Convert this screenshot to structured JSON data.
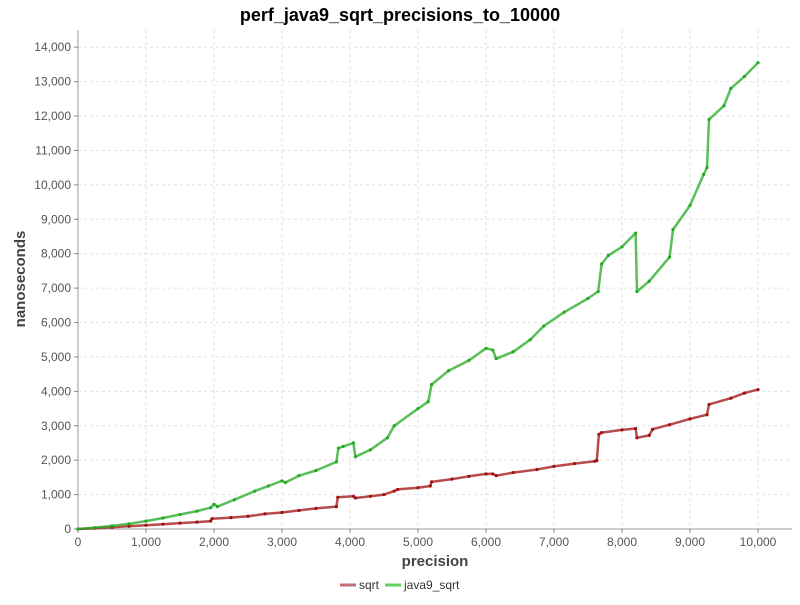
{
  "chart_data": {
    "type": "line",
    "title": "perf_java9_sqrt_precisions_to_10000",
    "xlabel": "precision",
    "ylabel": "nanoseconds",
    "xlim": [
      0,
      10500
    ],
    "ylim": [
      0,
      14500
    ],
    "x_ticks": [
      0,
      1000,
      2000,
      3000,
      4000,
      5000,
      6000,
      7000,
      8000,
      9000,
      10000
    ],
    "x_tick_labels": [
      "0",
      "1,000",
      "2,000",
      "3,000",
      "4,000",
      "5,000",
      "6,000",
      "7,000",
      "8,000",
      "9,000",
      "10,000"
    ],
    "y_ticks": [
      0,
      1000,
      2000,
      3000,
      4000,
      5000,
      6000,
      7000,
      8000,
      9000,
      10000,
      11000,
      12000,
      13000,
      14000
    ],
    "y_tick_labels": [
      "0",
      "1,000",
      "2,000",
      "3,000",
      "4,000",
      "5,000",
      "6,000",
      "7,000",
      "8,000",
      "9,000",
      "10,000",
      "11,000",
      "12,000",
      "13,000",
      "14,000"
    ],
    "grid": true,
    "legend_position": "bottom-center",
    "series": [
      {
        "name": "sqrt",
        "color": "#a01010",
        "legend_color": "#c07070",
        "points": [
          [
            0,
            0
          ],
          [
            250,
            20
          ],
          [
            500,
            50
          ],
          [
            750,
            80
          ],
          [
            1000,
            110
          ],
          [
            1250,
            140
          ],
          [
            1500,
            170
          ],
          [
            1750,
            200
          ],
          [
            1950,
            230
          ],
          [
            1970,
            300
          ],
          [
            2250,
            330
          ],
          [
            2500,
            370
          ],
          [
            2750,
            440
          ],
          [
            3000,
            480
          ],
          [
            3250,
            540
          ],
          [
            3500,
            600
          ],
          [
            3800,
            650
          ],
          [
            3820,
            920
          ],
          [
            4050,
            950
          ],
          [
            4080,
            900
          ],
          [
            4300,
            950
          ],
          [
            4500,
            1000
          ],
          [
            4650,
            1100
          ],
          [
            4700,
            1150
          ],
          [
            5000,
            1200
          ],
          [
            5180,
            1250
          ],
          [
            5200,
            1370
          ],
          [
            5500,
            1450
          ],
          [
            5750,
            1530
          ],
          [
            6000,
            1600
          ],
          [
            6100,
            1600
          ],
          [
            6150,
            1550
          ],
          [
            6400,
            1640
          ],
          [
            6750,
            1730
          ],
          [
            7000,
            1820
          ],
          [
            7300,
            1900
          ],
          [
            7600,
            1970
          ],
          [
            7630,
            1990
          ],
          [
            7660,
            2750
          ],
          [
            7700,
            2800
          ],
          [
            8000,
            2880
          ],
          [
            8200,
            2920
          ],
          [
            8220,
            2650
          ],
          [
            8400,
            2720
          ],
          [
            8450,
            2900
          ],
          [
            8700,
            3030
          ],
          [
            9000,
            3200
          ],
          [
            9250,
            3320
          ],
          [
            9280,
            3620
          ],
          [
            9600,
            3800
          ],
          [
            9800,
            3950
          ],
          [
            10000,
            4050
          ]
        ]
      },
      {
        "name": "java9_sqrt",
        "color": "#22aa22",
        "legend_color": "#66cc66",
        "points": [
          [
            0,
            0
          ],
          [
            250,
            40
          ],
          [
            500,
            90
          ],
          [
            750,
            150
          ],
          [
            1000,
            230
          ],
          [
            1250,
            320
          ],
          [
            1500,
            420
          ],
          [
            1750,
            520
          ],
          [
            1950,
            620
          ],
          [
            2000,
            720
          ],
          [
            2050,
            650
          ],
          [
            2300,
            850
          ],
          [
            2600,
            1100
          ],
          [
            2800,
            1250
          ],
          [
            3000,
            1400
          ],
          [
            3050,
            1350
          ],
          [
            3250,
            1550
          ],
          [
            3500,
            1700
          ],
          [
            3800,
            1950
          ],
          [
            3830,
            2350
          ],
          [
            3900,
            2400
          ],
          [
            4050,
            2500
          ],
          [
            4080,
            2100
          ],
          [
            4300,
            2300
          ],
          [
            4550,
            2650
          ],
          [
            4650,
            3000
          ],
          [
            5000,
            3500
          ],
          [
            5150,
            3700
          ],
          [
            5200,
            4200
          ],
          [
            5450,
            4600
          ],
          [
            5750,
            4900
          ],
          [
            6000,
            5250
          ],
          [
            6100,
            5200
          ],
          [
            6150,
            4950
          ],
          [
            6400,
            5150
          ],
          [
            6650,
            5500
          ],
          [
            6850,
            5900
          ],
          [
            7150,
            6300
          ],
          [
            7500,
            6700
          ],
          [
            7650,
            6900
          ],
          [
            7700,
            7700
          ],
          [
            7800,
            7950
          ],
          [
            8000,
            8200
          ],
          [
            8200,
            8600
          ],
          [
            8220,
            6900
          ],
          [
            8400,
            7200
          ],
          [
            8700,
            7900
          ],
          [
            8750,
            8700
          ],
          [
            9000,
            9400
          ],
          [
            9200,
            10300
          ],
          [
            9250,
            10500
          ],
          [
            9280,
            11900
          ],
          [
            9500,
            12300
          ],
          [
            9600,
            12800
          ],
          [
            9800,
            13150
          ],
          [
            10000,
            13550
          ]
        ]
      }
    ]
  }
}
